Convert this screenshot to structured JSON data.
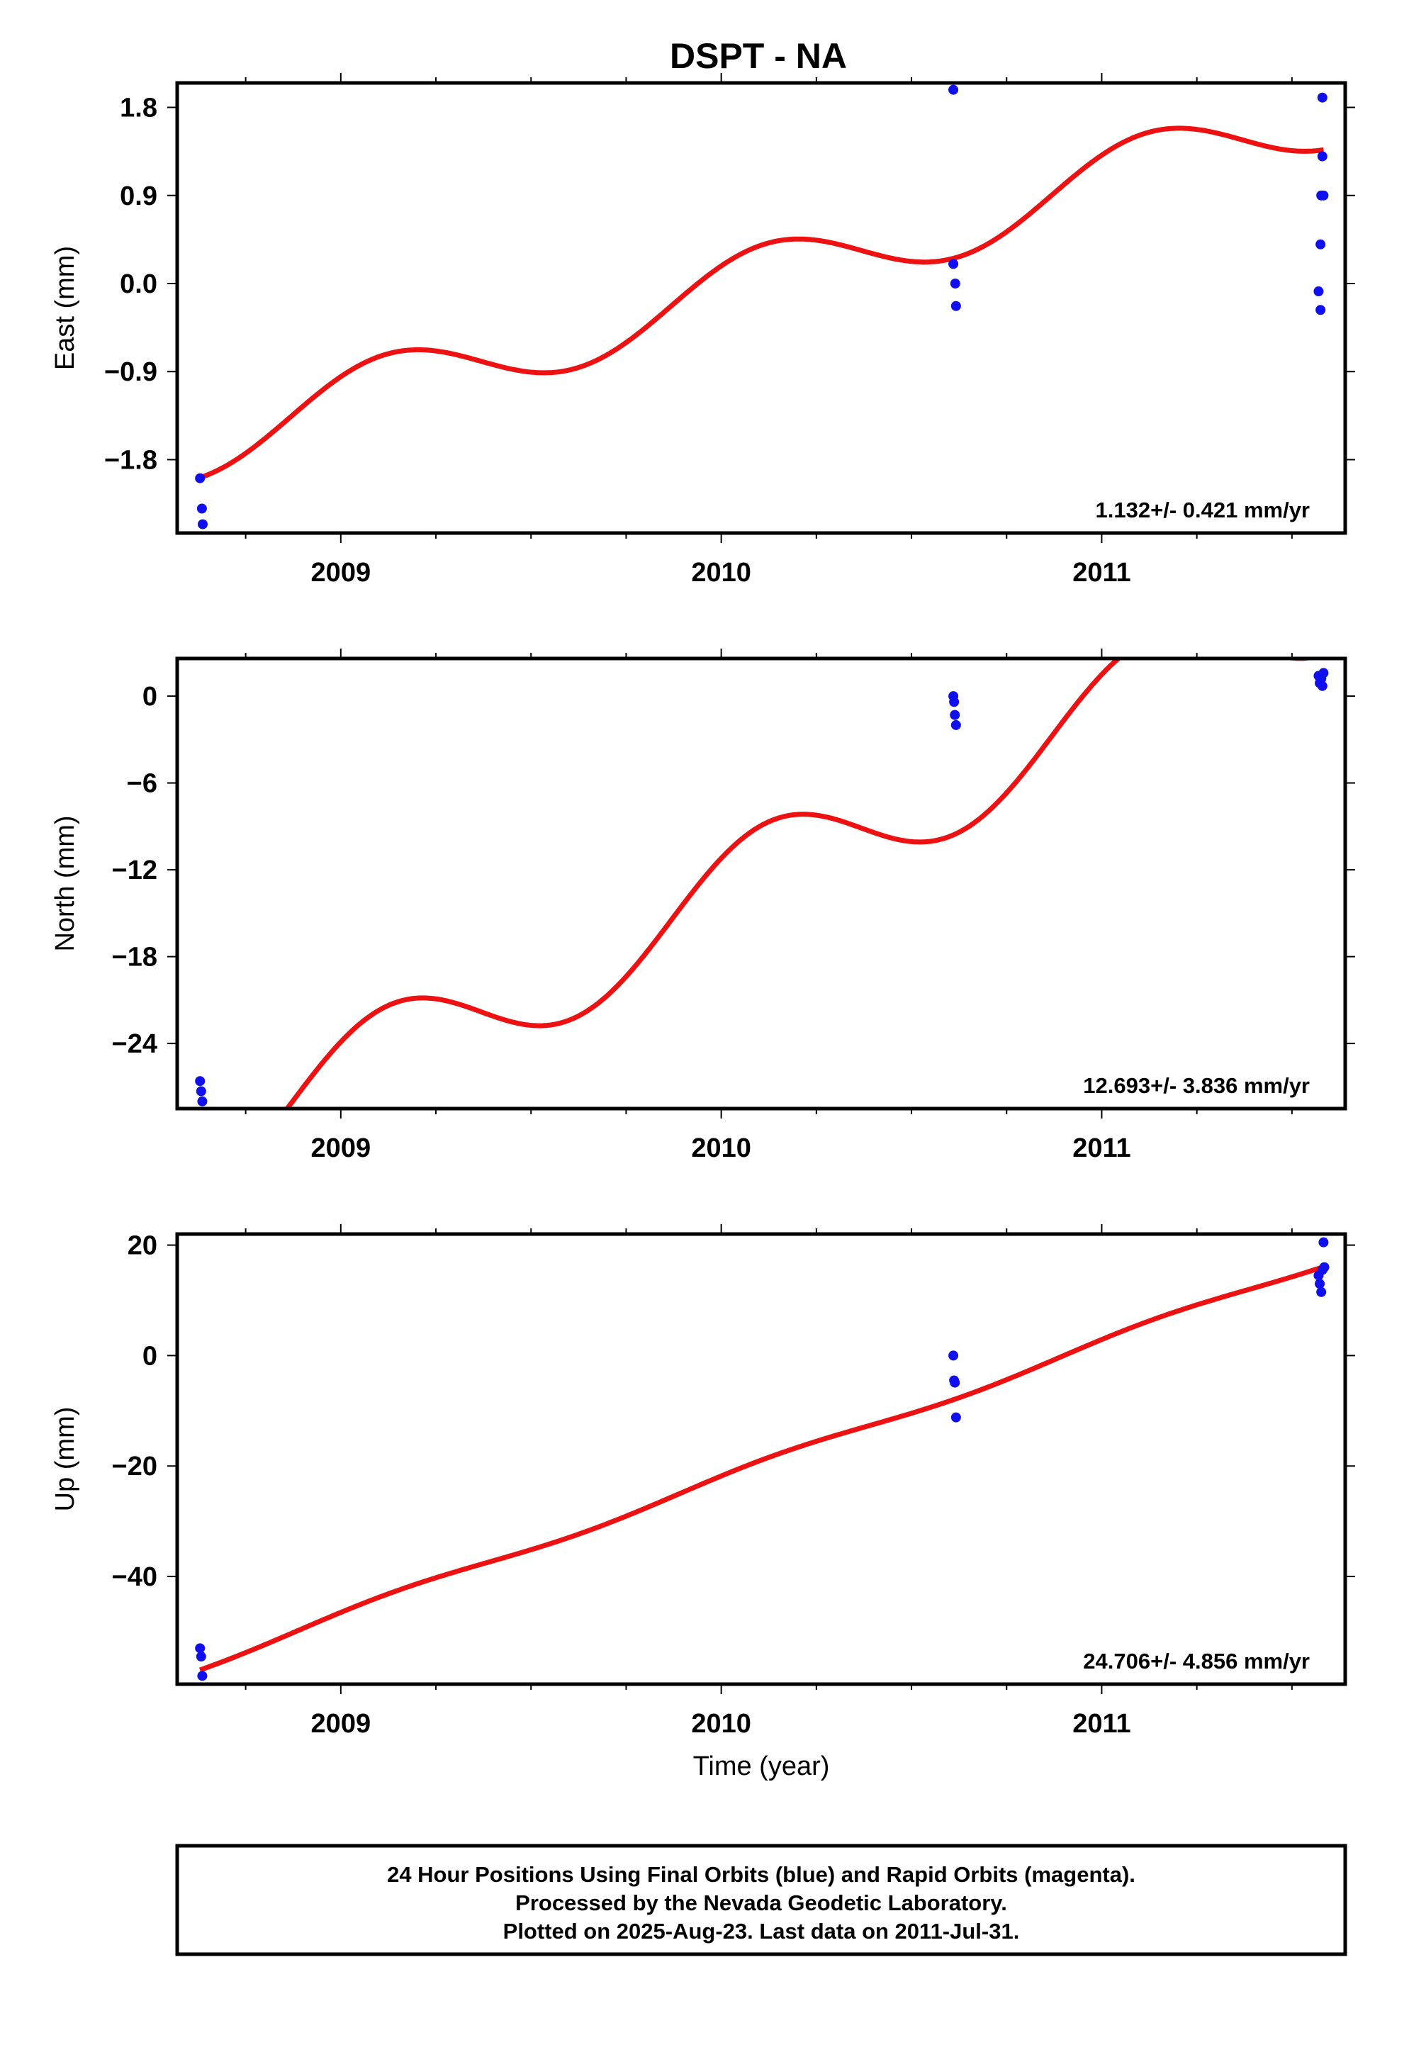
{
  "title": "DSPT - NA",
  "colors": {
    "model": "#ee1111",
    "final_orbits": "#1010ee",
    "frame": "#000000"
  },
  "chart_data": [
    {
      "type": "scatter",
      "ylabel": "East (mm)",
      "xlabel": "",
      "xlim": [
        2008.57,
        2011.64
      ],
      "ylim": [
        -2.55,
        2.05
      ],
      "xticks": [
        2009,
        2010,
        2011
      ],
      "xtick_labels": [
        "2009",
        "2010",
        "2011"
      ],
      "yticks": [
        1.8,
        0.9,
        0.0,
        -0.9,
        -1.8
      ],
      "ytick_labels": [
        "1.8",
        "0.9",
        "0.0",
        "−0.9",
        "−1.8"
      ],
      "rate_label": "1.132+/- 0.421 mm/yr",
      "model": {
        "slope": 1.132,
        "intercept": -0.08,
        "sin_amp": 0.24,
        "cos_amp": 0.26,
        "x0": 2010.0
      },
      "series": [
        {
          "marker": "final_orbits",
          "x": [
            2008.63,
            2008.635,
            2008.637,
            2010.61,
            2010.61,
            2010.615,
            2010.617,
            2011.57,
            2011.575,
            2011.575,
            2011.577,
            2011.58,
            2011.58,
            2011.583
          ],
          "y": [
            -1.99,
            -2.3,
            -2.46,
            1.98,
            0.2,
            0.0,
            -0.23,
            -0.08,
            -0.27,
            0.4,
            0.9,
            1.3,
            1.9,
            0.9
          ]
        }
      ]
    },
    {
      "type": "scatter",
      "ylabel": "North (mm)",
      "xlabel": "",
      "xlim": [
        2008.57,
        2011.64
      ],
      "ylim": [
        -28.5,
        2.6
      ],
      "xticks": [
        2009,
        2010,
        2011
      ],
      "xtick_labels": [
        "2009",
        "2010",
        "2011"
      ],
      "yticks": [
        0,
        -6,
        -12,
        -18,
        -24
      ],
      "ytick_labels": [
        "0",
        "−6",
        "−12",
        "−18",
        "−24"
      ],
      "rate_label": "12.693+/- 3.836 mm/yr",
      "model": {
        "slope": 12.693,
        "intercept": -13.8,
        "sin_amp": 2.4,
        "cos_amp": 2.6,
        "x0": 2010.0
      },
      "series": [
        {
          "marker": "final_orbits",
          "x": [
            2008.63,
            2008.633,
            2008.636,
            2010.61,
            2010.612,
            2010.614,
            2010.617,
            2011.57,
            2011.573,
            2011.577,
            2011.58,
            2011.583
          ],
          "y": [
            -26.6,
            -27.3,
            -28.0,
            0.0,
            -0.4,
            -1.3,
            -2.0,
            1.4,
            0.9,
            1.2,
            0.7,
            1.6
          ]
        }
      ]
    },
    {
      "type": "scatter",
      "ylabel": "Up (mm)",
      "xlabel": "Time (year)",
      "xlim": [
        2008.57,
        2011.64
      ],
      "ylim": [
        -59.5,
        22.0
      ],
      "xticks": [
        2009,
        2010,
        2011
      ],
      "xtick_labels": [
        "2009",
        "2010",
        "2011"
      ],
      "yticks": [
        20,
        0,
        -20,
        -40
      ],
      "ytick_labels": [
        "20",
        "0",
        "−20",
        "−40"
      ],
      "rate_label": "24.706+/- 4.856 mm/yr",
      "model": {
        "slope": 24.706,
        "intercept": -22.3,
        "sin_amp": 0.6,
        "cos_amp": 0.5,
        "x0": 2010.0
      },
      "series": [
        {
          "marker": "final_orbits",
          "x": [
            2008.63,
            2008.633,
            2008.636,
            2010.61,
            2010.612,
            2010.614,
            2010.617,
            2011.57,
            2011.573,
            2011.577,
            2011.58,
            2011.583,
            2011.585
          ],
          "y": [
            -53.0,
            -54.5,
            -58.0,
            0.0,
            -4.5,
            -4.9,
            -11.2,
            14.5,
            13.0,
            11.5,
            15.5,
            20.5,
            16.0
          ]
        }
      ]
    }
  ],
  "footer": {
    "line1": "24 Hour Positions Using Final Orbits (blue) and Rapid Orbits (magenta).",
    "line2": "Processed by the Nevada Geodetic Laboratory.",
    "line3": "Plotted on 2025-Aug-23. Last data on 2011-Jul-31."
  }
}
